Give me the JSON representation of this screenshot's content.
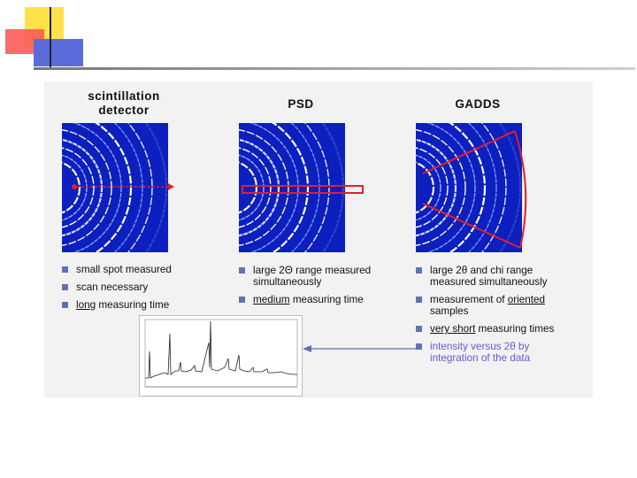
{
  "colors": {
    "deco_yellow": "#ffe24a",
    "deco_red": "#ff5b5b",
    "deco_blue": "#5a6cd9",
    "bullet": "#5f72b6",
    "diffraction_bg": "#0c1fbf",
    "overlay_red": "#e0202a",
    "arrow": "#5f6fb8"
  },
  "columns": [
    {
      "title_line1": "scintillation",
      "title_line2": "detector",
      "bullets": [
        {
          "text": "small spot measured"
        },
        {
          "text": "scan necessary"
        },
        {
          "underlined": "long",
          "rest": " measuring time"
        }
      ]
    },
    {
      "title_line1": "PSD",
      "bullets": [
        {
          "line1": "large 2Θ range measured",
          "line2": "simultaneously"
        },
        {
          "underlined": "medium",
          "rest": " measuring time"
        }
      ]
    },
    {
      "title_line1": "GADDS",
      "bullets": [
        {
          "line1": "large 2θ and chi range",
          "line2": "measured simultaneously"
        },
        {
          "pre": "measurement of ",
          "underlined": "oriented",
          "line2": "samples"
        },
        {
          "underlined": "very short",
          "rest": " measuring times"
        },
        {
          "line1": "intensity versus 2θ by",
          "line2": "integration of the data"
        }
      ]
    }
  ],
  "icons": {
    "bullet": "square-bullet-icon",
    "arrow": "left-arrow-icon"
  }
}
